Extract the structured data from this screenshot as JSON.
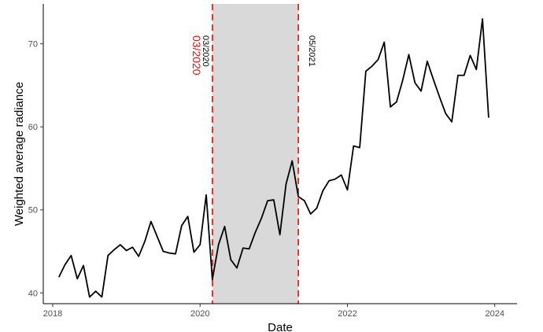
{
  "chart_data": {
    "type": "line",
    "xlabel": "Date",
    "ylabel": "Weighted average radiance",
    "xlim": [
      "2017-11-15",
      "2024-04-20"
    ],
    "ylim": [
      38.7,
      74.8
    ],
    "x_ticks": [
      "2018",
      "2020",
      "2022",
      "2024"
    ],
    "x_tick_values": [
      "2018-01-01",
      "2020-01-01",
      "2022-01-01",
      "2024-01-01"
    ],
    "y_ticks": [
      40,
      50,
      60,
      70
    ],
    "grid": false,
    "shaded_region": {
      "start": "2020-03-01",
      "end": "2021-05-01",
      "color": "#d9d9d9"
    },
    "reference_lines": [
      {
        "x": "2020-03-01",
        "label": "03/2020",
        "color": "#ff0000",
        "style": "dashed"
      },
      {
        "x": "2021-05-01",
        "label": "05/2021",
        "color": "#ff0000",
        "style": "dashed"
      }
    ],
    "annotations": [
      {
        "x": "2020-03-01",
        "text": "03/2020",
        "color": "#ff0000",
        "side": "left",
        "size": "large"
      },
      {
        "x": "2020-03-01",
        "text": "03/2020",
        "color": "#000000",
        "side": "left",
        "size": "small"
      },
      {
        "x": "2021-05-01",
        "text": "05/2021",
        "color": "#000000",
        "side": "right",
        "size": "small"
      }
    ],
    "series": [
      {
        "color": "#000000",
        "x": [
          "2018-02",
          "2018-03",
          "2018-04",
          "2018-05",
          "2018-06",
          "2018-07",
          "2018-08",
          "2018-09",
          "2018-10",
          "2018-11",
          "2018-12",
          "2019-01",
          "2019-02",
          "2019-03",
          "2019-04",
          "2019-05",
          "2019-06",
          "2019-07",
          "2019-08",
          "2019-09",
          "2019-10",
          "2019-11",
          "2019-12",
          "2020-01",
          "2020-02",
          "2020-03",
          "2020-04",
          "2020-05",
          "2020-06",
          "2020-07",
          "2020-08",
          "2020-09",
          "2020-10",
          "2020-11",
          "2020-12",
          "2021-01",
          "2021-02",
          "2021-03",
          "2021-04",
          "2021-05",
          "2021-06",
          "2021-07",
          "2021-08",
          "2021-09",
          "2021-10",
          "2021-11",
          "2021-12",
          "2022-01",
          "2022-02",
          "2022-03",
          "2022-04",
          "2022-05",
          "2022-06",
          "2022-07",
          "2022-08",
          "2022-09",
          "2022-10",
          "2022-11",
          "2022-12",
          "2023-01",
          "2023-02",
          "2023-03",
          "2023-04",
          "2023-05",
          "2023-06",
          "2023-07",
          "2023-08",
          "2023-09",
          "2023-10",
          "2023-11",
          "2023-12"
        ],
        "values": [
          41.9,
          43.4,
          44.5,
          41.7,
          43.3,
          39.5,
          40.2,
          39.5,
          44.5,
          45.2,
          45.8,
          45.1,
          45.5,
          44.4,
          46.2,
          48.6,
          46.8,
          45.0,
          44.8,
          44.7,
          48.1,
          49.2,
          44.9,
          45.8,
          51.8,
          41.6,
          45.8,
          48.0,
          44.0,
          43.0,
          45.4,
          45.3,
          47.3,
          49.0,
          51.1,
          51.2,
          47.0,
          53.1,
          55.9,
          51.6,
          51.1,
          49.5,
          50.2,
          52.3,
          53.5,
          53.7,
          54.2,
          52.4,
          57.7,
          57.5,
          66.7,
          67.3,
          68.1,
          70.2,
          62.4,
          63.0,
          65.6,
          68.7,
          65.3,
          64.3,
          67.9,
          65.7,
          63.6,
          61.6,
          60.6,
          66.2,
          66.2,
          68.6,
          66.9,
          73.0,
          61.1
        ]
      }
    ]
  }
}
